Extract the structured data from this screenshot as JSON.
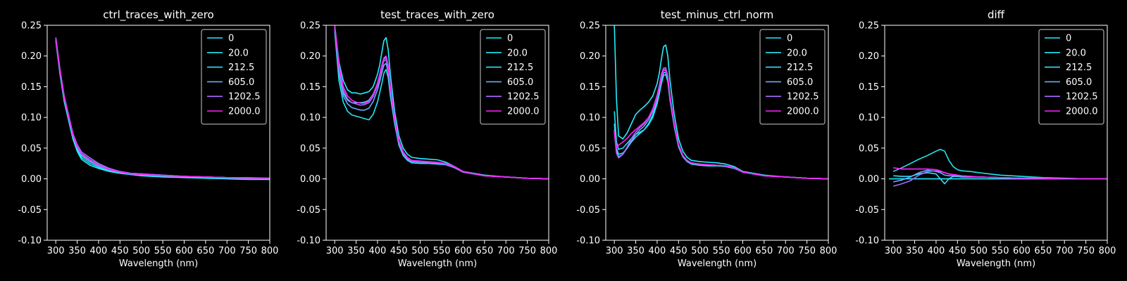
{
  "figure": {
    "background": "#000000",
    "foreground": "#ffffff"
  },
  "legend_labels": [
    "0",
    "20.0",
    "212.5",
    "605.0",
    "1202.5",
    "2000.0"
  ],
  "legend_colors": [
    "#22eeff",
    "#1fe6f0",
    "#33ddff",
    "#66aaff",
    "#aa66ff",
    "#ff22ff"
  ],
  "chart_data": [
    {
      "type": "line",
      "title": "ctrl_traces_with_zero",
      "xlabel": "Wavelength (nm)",
      "ylabel": "",
      "xlim": [
        280,
        800
      ],
      "ylim": [
        -0.1,
        0.25
      ],
      "xticks": [
        300,
        350,
        400,
        450,
        500,
        550,
        600,
        650,
        700,
        750,
        800
      ],
      "yticks": [
        -0.1,
        -0.05,
        0.0,
        0.05,
        0.1,
        0.15,
        0.2,
        0.25
      ],
      "legend_position": "top-right",
      "x": [
        300,
        310,
        320,
        330,
        340,
        350,
        360,
        380,
        400,
        425,
        450,
        475,
        500,
        550,
        600,
        650,
        700,
        750,
        800
      ],
      "series": [
        {
          "name": "0",
          "color": "#22eeff",
          "values": [
            0.225,
            0.17,
            0.125,
            0.095,
            0.065,
            0.045,
            0.032,
            0.022,
            0.017,
            0.012,
            0.009,
            0.007,
            0.005,
            0.003,
            0.002,
            0.001,
            0.0,
            -0.001,
            -0.001
          ]
        },
        {
          "name": "20.0",
          "color": "#1fe6f0",
          "values": [
            0.228,
            0.172,
            0.128,
            0.098,
            0.068,
            0.048,
            0.035,
            0.025,
            0.019,
            0.013,
            0.01,
            0.007,
            0.006,
            0.004,
            0.003,
            0.002,
            0.001,
            0.0,
            0.0
          ]
        },
        {
          "name": "212.5",
          "color": "#33ddff",
          "values": [
            0.23,
            0.175,
            0.13,
            0.1,
            0.07,
            0.05,
            0.038,
            0.028,
            0.021,
            0.015,
            0.011,
            0.008,
            0.007,
            0.005,
            0.004,
            0.003,
            0.002,
            0.001,
            0.0
          ]
        },
        {
          "name": "605.0",
          "color": "#66aaff",
          "values": [
            0.23,
            0.176,
            0.132,
            0.102,
            0.072,
            0.053,
            0.041,
            0.031,
            0.023,
            0.016,
            0.012,
            0.009,
            0.008,
            0.006,
            0.004,
            0.003,
            0.002,
            0.001,
            0.001
          ]
        },
        {
          "name": "1202.5",
          "color": "#aa66ff",
          "values": [
            0.23,
            0.178,
            0.134,
            0.104,
            0.074,
            0.056,
            0.044,
            0.034,
            0.025,
            0.017,
            0.012,
            0.009,
            0.008,
            0.006,
            0.004,
            0.003,
            0.002,
            0.002,
            0.001
          ]
        },
        {
          "name": "2000.0",
          "color": "#ff22ff",
          "values": [
            0.228,
            0.175,
            0.131,
            0.101,
            0.071,
            0.052,
            0.04,
            0.03,
            0.022,
            0.015,
            0.011,
            0.008,
            0.007,
            0.005,
            0.004,
            0.003,
            0.002,
            0.001,
            0.001
          ]
        }
      ]
    },
    {
      "type": "line",
      "title": "test_traces_with_zero",
      "xlabel": "Wavelength (nm)",
      "ylabel": "",
      "xlim": [
        280,
        800
      ],
      "ylim": [
        -0.1,
        0.25
      ],
      "xticks": [
        300,
        350,
        400,
        450,
        500,
        550,
        600,
        650,
        700,
        750,
        800
      ],
      "yticks": [
        -0.1,
        -0.05,
        0.0,
        0.05,
        0.1,
        0.15,
        0.2,
        0.25
      ],
      "legend_position": "top-right",
      "x": [
        300,
        310,
        320,
        330,
        340,
        350,
        360,
        370,
        380,
        390,
        400,
        405,
        410,
        415,
        420,
        425,
        430,
        440,
        450,
        460,
        470,
        480,
        500,
        520,
        540,
        560,
        580,
        600,
        650,
        700,
        750,
        800
      ],
      "series": [
        {
          "name": "0",
          "color": "#22eeff",
          "values": [
            0.25,
            0.19,
            0.16,
            0.145,
            0.14,
            0.14,
            0.138,
            0.14,
            0.142,
            0.15,
            0.17,
            0.185,
            0.205,
            0.225,
            0.23,
            0.21,
            0.17,
            0.11,
            0.07,
            0.05,
            0.04,
            0.035,
            0.033,
            0.032,
            0.031,
            0.027,
            0.02,
            0.012,
            0.006,
            0.003,
            0.001,
            0.0
          ]
        },
        {
          "name": "20.0",
          "color": "#1fe6f0",
          "values": [
            0.24,
            0.16,
            0.125,
            0.11,
            0.104,
            0.102,
            0.1,
            0.098,
            0.096,
            0.105,
            0.125,
            0.14,
            0.155,
            0.172,
            0.178,
            0.165,
            0.135,
            0.09,
            0.055,
            0.038,
            0.03,
            0.026,
            0.025,
            0.025,
            0.024,
            0.023,
            0.018,
            0.011,
            0.005,
            0.003,
            0.001,
            0.0
          ]
        },
        {
          "name": "212.5",
          "color": "#33ddff",
          "values": [
            0.245,
            0.175,
            0.14,
            0.128,
            0.124,
            0.124,
            0.124,
            0.125,
            0.128,
            0.138,
            0.155,
            0.168,
            0.182,
            0.195,
            0.198,
            0.182,
            0.148,
            0.098,
            0.062,
            0.043,
            0.034,
            0.03,
            0.028,
            0.027,
            0.026,
            0.024,
            0.019,
            0.011,
            0.005,
            0.003,
            0.001,
            0.0
          ]
        },
        {
          "name": "605.0",
          "color": "#66aaff",
          "values": [
            0.245,
            0.172,
            0.135,
            0.122,
            0.116,
            0.114,
            0.112,
            0.112,
            0.115,
            0.126,
            0.145,
            0.158,
            0.172,
            0.185,
            0.188,
            0.174,
            0.142,
            0.094,
            0.058,
            0.041,
            0.032,
            0.028,
            0.027,
            0.026,
            0.025,
            0.023,
            0.018,
            0.011,
            0.005,
            0.003,
            0.001,
            0.0
          ]
        },
        {
          "name": "1202.5",
          "color": "#aa66ff",
          "values": [
            0.248,
            0.18,
            0.145,
            0.13,
            0.124,
            0.122,
            0.12,
            0.121,
            0.124,
            0.134,
            0.152,
            0.166,
            0.18,
            0.192,
            0.194,
            0.18,
            0.146,
            0.097,
            0.06,
            0.042,
            0.033,
            0.029,
            0.028,
            0.027,
            0.026,
            0.024,
            0.019,
            0.011,
            0.005,
            0.003,
            0.001,
            0.0
          ]
        },
        {
          "name": "2000.0",
          "color": "#ff22ff",
          "values": [
            0.25,
            0.185,
            0.15,
            0.135,
            0.128,
            0.125,
            0.123,
            0.123,
            0.126,
            0.137,
            0.156,
            0.17,
            0.185,
            0.197,
            0.2,
            0.185,
            0.15,
            0.1,
            0.062,
            0.044,
            0.035,
            0.03,
            0.029,
            0.028,
            0.027,
            0.025,
            0.02,
            0.012,
            0.005,
            0.003,
            0.001,
            0.0
          ]
        }
      ]
    },
    {
      "type": "line",
      "title": "test_minus_ctrl_norm",
      "xlabel": "Wavelength (nm)",
      "ylabel": "",
      "xlim": [
        280,
        800
      ],
      "ylim": [
        -0.1,
        0.25
      ],
      "xticks": [
        300,
        350,
        400,
        450,
        500,
        550,
        600,
        650,
        700,
        750,
        800
      ],
      "yticks": [
        -0.1,
        -0.05,
        0.0,
        0.05,
        0.1,
        0.15,
        0.2,
        0.25
      ],
      "legend_position": "top-right",
      "x": [
        300,
        305,
        310,
        320,
        330,
        340,
        350,
        360,
        370,
        380,
        390,
        400,
        405,
        410,
        415,
        420,
        425,
        430,
        440,
        450,
        460,
        470,
        480,
        500,
        520,
        540,
        560,
        580,
        600,
        650,
        700,
        750,
        800
      ],
      "series": [
        {
          "name": "0",
          "color": "#22eeff",
          "values": [
            0.25,
            0.13,
            0.07,
            0.065,
            0.075,
            0.09,
            0.105,
            0.112,
            0.118,
            0.125,
            0.135,
            0.155,
            0.172,
            0.195,
            0.215,
            0.218,
            0.2,
            0.16,
            0.105,
            0.065,
            0.045,
            0.035,
            0.03,
            0.028,
            0.027,
            0.026,
            0.024,
            0.02,
            0.012,
            0.006,
            0.003,
            0.001,
            0.0
          ]
        },
        {
          "name": "20.0",
          "color": "#1fe6f0",
          "values": [
            0.11,
            0.06,
            0.048,
            0.05,
            0.058,
            0.066,
            0.072,
            0.076,
            0.08,
            0.088,
            0.1,
            0.122,
            0.138,
            0.155,
            0.168,
            0.17,
            0.158,
            0.128,
            0.085,
            0.052,
            0.036,
            0.028,
            0.024,
            0.022,
            0.021,
            0.021,
            0.02,
            0.017,
            0.011,
            0.005,
            0.003,
            0.001,
            0.0
          ]
        },
        {
          "name": "212.5",
          "color": "#33ddff",
          "values": [
            0.09,
            0.05,
            0.04,
            0.042,
            0.05,
            0.06,
            0.068,
            0.074,
            0.08,
            0.09,
            0.104,
            0.126,
            0.142,
            0.16,
            0.172,
            0.174,
            0.161,
            0.13,
            0.087,
            0.054,
            0.037,
            0.029,
            0.025,
            0.023,
            0.022,
            0.022,
            0.021,
            0.018,
            0.011,
            0.005,
            0.003,
            0.001,
            0.0
          ]
        },
        {
          "name": "605.0",
          "color": "#66aaff",
          "values": [
            0.08,
            0.045,
            0.036,
            0.04,
            0.05,
            0.062,
            0.072,
            0.08,
            0.086,
            0.096,
            0.11,
            0.132,
            0.148,
            0.166,
            0.177,
            0.178,
            0.164,
            0.132,
            0.088,
            0.055,
            0.038,
            0.029,
            0.025,
            0.023,
            0.022,
            0.022,
            0.021,
            0.018,
            0.011,
            0.005,
            0.003,
            0.001,
            0.0
          ]
        },
        {
          "name": "1202.5",
          "color": "#aa66ff",
          "values": [
            0.075,
            0.042,
            0.034,
            0.04,
            0.052,
            0.066,
            0.076,
            0.084,
            0.09,
            0.1,
            0.114,
            0.136,
            0.152,
            0.17,
            0.18,
            0.181,
            0.167,
            0.135,
            0.09,
            0.056,
            0.038,
            0.03,
            0.026,
            0.024,
            0.023,
            0.022,
            0.021,
            0.018,
            0.011,
            0.005,
            0.003,
            0.001,
            0.0
          ]
        },
        {
          "name": "2000.0",
          "color": "#ff22ff",
          "values": [
            0.078,
            0.05,
            0.055,
            0.06,
            0.066,
            0.074,
            0.08,
            0.086,
            0.092,
            0.1,
            0.112,
            0.132,
            0.148,
            0.165,
            0.176,
            0.177,
            0.164,
            0.132,
            0.088,
            0.055,
            0.038,
            0.03,
            0.026,
            0.024,
            0.023,
            0.022,
            0.021,
            0.018,
            0.011,
            0.005,
            0.003,
            0.001,
            0.0
          ]
        }
      ]
    },
    {
      "type": "line",
      "title": "diff",
      "xlabel": "Wavelength (nm)",
      "ylabel": "",
      "xlim": [
        280,
        800
      ],
      "ylim": [
        -0.1,
        0.25
      ],
      "xticks": [
        300,
        350,
        400,
        450,
        500,
        550,
        600,
        650,
        700,
        750,
        800
      ],
      "yticks": [
        -0.1,
        -0.05,
        0.0,
        0.05,
        0.1,
        0.15,
        0.2,
        0.25
      ],
      "legend_position": "top-right",
      "x": [
        290,
        300,
        320,
        340,
        360,
        380,
        400,
        410,
        420,
        430,
        440,
        450,
        460,
        480,
        500,
        550,
        600,
        650,
        700,
        750,
        800
      ],
      "series": [
        {
          "name": "0",
          "color": "#22eeff",
          "values": [
            0.0,
            0.0,
            0.0,
            0.0,
            0.0,
            0.0,
            0.0,
            0.0,
            0.0,
            0.0,
            0.0,
            0.0,
            0.0,
            0.0,
            0.0,
            0.0,
            0.0,
            0.0,
            0.0,
            0.0,
            0.0
          ]
        },
        {
          "name": "20.0",
          "color": "#1fe6f0",
          "values": [
            null,
            0.012,
            0.018,
            0.025,
            0.032,
            0.038,
            0.045,
            0.048,
            0.045,
            0.03,
            0.02,
            0.015,
            0.013,
            0.012,
            0.01,
            0.006,
            0.004,
            0.002,
            0.001,
            0.0,
            0.0
          ]
        },
        {
          "name": "212.5",
          "color": "#33ddff",
          "values": [
            null,
            0.005,
            0.004,
            0.004,
            0.008,
            0.01,
            0.008,
            0.0,
            -0.008,
            0.0,
            0.004,
            0.004,
            0.003,
            0.003,
            0.003,
            0.002,
            0.001,
            0.001,
            0.0,
            0.0,
            0.0
          ]
        },
        {
          "name": "605.0",
          "color": "#66aaff",
          "values": [
            null,
            -0.005,
            -0.002,
            0.003,
            0.01,
            0.014,
            0.012,
            0.01,
            0.006,
            0.005,
            0.005,
            0.005,
            0.004,
            0.004,
            0.003,
            0.002,
            0.001,
            0.001,
            0.0,
            0.0,
            0.0
          ]
        },
        {
          "name": "1202.5",
          "color": "#aa66ff",
          "values": [
            null,
            -0.012,
            -0.008,
            -0.003,
            0.006,
            0.012,
            0.013,
            0.012,
            0.01,
            0.008,
            0.007,
            0.006,
            0.005,
            0.004,
            0.003,
            0.002,
            0.001,
            0.001,
            0.0,
            0.0,
            0.0
          ]
        },
        {
          "name": "2000.0",
          "color": "#ff22ff",
          "values": [
            null,
            0.018,
            0.016,
            0.016,
            0.016,
            0.016,
            0.015,
            0.013,
            0.01,
            0.008,
            0.007,
            0.006,
            0.005,
            0.004,
            0.003,
            0.002,
            0.001,
            0.001,
            0.0,
            0.0,
            0.0
          ]
        }
      ]
    }
  ]
}
